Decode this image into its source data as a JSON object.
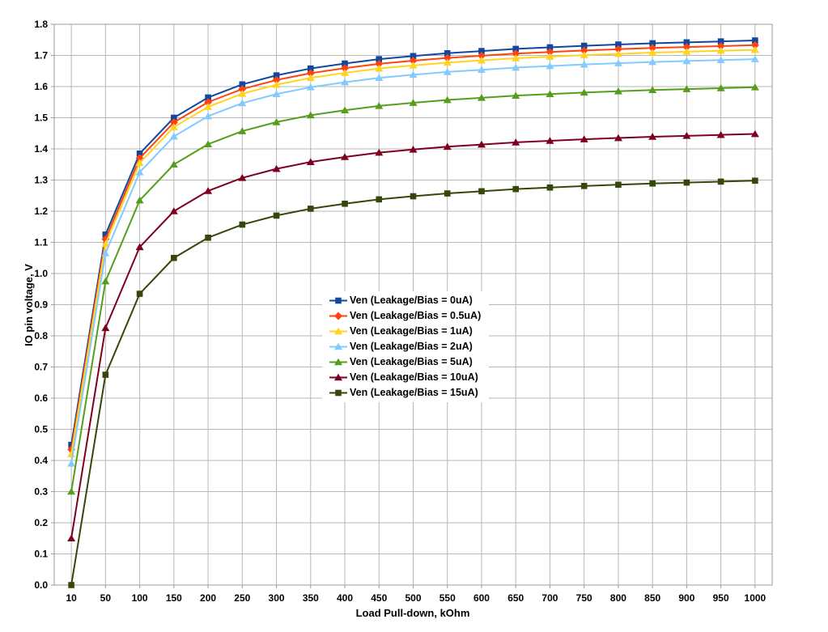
{
  "page": {
    "background": "#FFFFFF"
  },
  "chart_data": {
    "type": "line",
    "title": "",
    "xlabel": "Load Pull-down, kOhm",
    "ylabel": "IO pin voltage, V",
    "x_categories": [
      10,
      50,
      100,
      150,
      200,
      250,
      300,
      350,
      400,
      450,
      500,
      550,
      600,
      650,
      700,
      750,
      800,
      850,
      900,
      950,
      1000
    ],
    "x_tick_labels": [
      "10",
      "50",
      "100",
      "150",
      "200",
      "250",
      "300",
      "350",
      "400",
      "450",
      "500",
      "550",
      "600",
      "650",
      "700",
      "750",
      "800",
      "850",
      "900",
      "950",
      "1000"
    ],
    "y_tick_labels": [
      "0.0",
      "0.1",
      "0.2",
      "0.3",
      "0.4",
      "0.5",
      "0.6",
      "0.7",
      "0.8",
      "0.9",
      "1.0",
      "1.1",
      "1.2",
      "1.3",
      "1.4",
      "1.5",
      "1.6",
      "1.7",
      "1.8"
    ],
    "ylim": [
      0.0,
      1.8
    ],
    "y_tick_step": 0.1,
    "grid": {
      "horizontal": true,
      "vertical": true,
      "color": "#B7B7B7"
    },
    "axis_color": "#9B9B9B",
    "legend": {
      "position": "inside-center",
      "background": "#FFFFFF"
    },
    "series": [
      {
        "name": "Ven (Leakage/Bias = 0uA)",
        "color": "#11479E",
        "marker": "square",
        "values": [
          0.45,
          1.125,
          1.385,
          1.5,
          1.565,
          1.607,
          1.636,
          1.658,
          1.674,
          1.688,
          1.698,
          1.707,
          1.714,
          1.721,
          1.726,
          1.731,
          1.735,
          1.739,
          1.742,
          1.745,
          1.748
        ]
      },
      {
        "name": "Ven (Leakage/Bias = 0.5uA)",
        "color": "#FF420E",
        "marker": "diamond",
        "values": [
          0.435,
          1.11,
          1.37,
          1.485,
          1.55,
          1.592,
          1.621,
          1.643,
          1.659,
          1.673,
          1.683,
          1.692,
          1.699,
          1.706,
          1.711,
          1.716,
          1.72,
          1.724,
          1.727,
          1.73,
          1.733
        ]
      },
      {
        "name": "Ven (Leakage/Bias = 1uA)",
        "color": "#FFD320",
        "marker": "triangle",
        "values": [
          0.42,
          1.095,
          1.355,
          1.47,
          1.535,
          1.577,
          1.606,
          1.628,
          1.644,
          1.658,
          1.668,
          1.677,
          1.684,
          1.691,
          1.696,
          1.701,
          1.705,
          1.709,
          1.712,
          1.715,
          1.718
        ]
      },
      {
        "name": "Ven (Leakage/Bias = 2uA)",
        "color": "#83CAFF",
        "marker": "triangle",
        "values": [
          0.39,
          1.065,
          1.325,
          1.44,
          1.505,
          1.547,
          1.576,
          1.598,
          1.614,
          1.628,
          1.638,
          1.647,
          1.654,
          1.661,
          1.666,
          1.671,
          1.675,
          1.679,
          1.682,
          1.685,
          1.688
        ]
      },
      {
        "name": "Ven (Leakage/Bias = 5uA)",
        "color": "#579D1C",
        "marker": "triangle",
        "values": [
          0.3,
          0.975,
          1.235,
          1.35,
          1.415,
          1.457,
          1.486,
          1.508,
          1.524,
          1.538,
          1.548,
          1.557,
          1.564,
          1.571,
          1.576,
          1.581,
          1.585,
          1.589,
          1.592,
          1.595,
          1.598
        ]
      },
      {
        "name": "Ven (Leakage/Bias = 10uA)",
        "color": "#7E0021",
        "marker": "triangle",
        "values": [
          0.15,
          0.825,
          1.085,
          1.2,
          1.265,
          1.307,
          1.336,
          1.358,
          1.374,
          1.388,
          1.398,
          1.407,
          1.414,
          1.421,
          1.426,
          1.431,
          1.435,
          1.439,
          1.442,
          1.445,
          1.448
        ]
      },
      {
        "name": "Ven (Leakage/Bias = 15uA)",
        "color": "#35470A",
        "marker": "square",
        "values": [
          0.0,
          0.675,
          0.935,
          1.05,
          1.115,
          1.157,
          1.186,
          1.208,
          1.224,
          1.238,
          1.248,
          1.257,
          1.264,
          1.271,
          1.276,
          1.281,
          1.285,
          1.289,
          1.292,
          1.295,
          1.298
        ]
      }
    ]
  }
}
